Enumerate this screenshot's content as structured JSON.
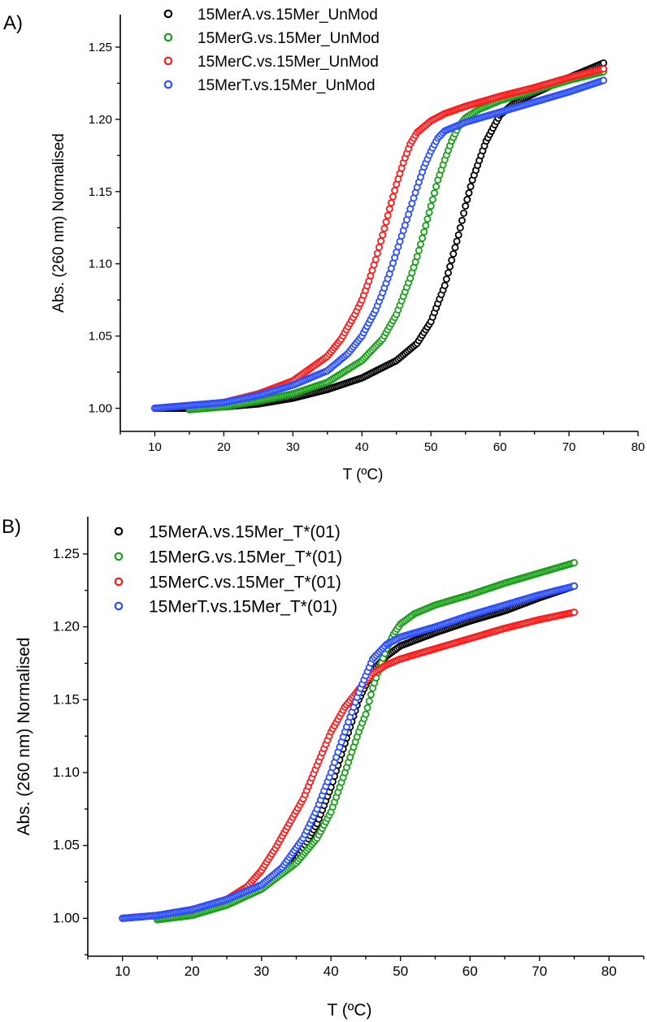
{
  "chart_data": [
    {
      "panel_label": "A)",
      "type": "scatter",
      "xlabel": "T (ºC)",
      "ylabel": "Abs. (260 nm) Normalised",
      "xlim": [
        5,
        80
      ],
      "ylim": [
        0.984,
        1.2725
      ],
      "xticks": [
        10,
        20,
        30,
        40,
        50,
        60,
        70,
        80
      ],
      "yticks": [
        "1.00",
        "1.05",
        "1.10",
        "1.15",
        "1.20",
        "1.25"
      ],
      "grid": false,
      "legend": "top-left",
      "series": [
        {
          "name": "15MerA.vs.15Mer_UnMod",
          "color": "#000000",
          "x": [
            10,
            15,
            20,
            25,
            30,
            35,
            40,
            45,
            48,
            50,
            52,
            54,
            55,
            56,
            58,
            60,
            62,
            65,
            70,
            75
          ],
          "y": [
            1.0,
            1.0,
            1.001,
            1.003,
            1.007,
            1.013,
            1.021,
            1.033,
            1.045,
            1.06,
            1.085,
            1.12,
            1.14,
            1.158,
            1.185,
            1.203,
            1.211,
            1.218,
            1.229,
            1.239
          ]
        },
        {
          "name": "15MerG.vs.15Mer_UnMod",
          "color": "#1a9e1a",
          "x": [
            15,
            20,
            25,
            30,
            35,
            40,
            43,
            45,
            47,
            48,
            49,
            50,
            51,
            52,
            53,
            54,
            55,
            57,
            60,
            65,
            70,
            75
          ],
          "y": [
            0.999,
            1.001,
            1.005,
            1.01,
            1.018,
            1.033,
            1.048,
            1.065,
            1.09,
            1.105,
            1.122,
            1.14,
            1.158,
            1.172,
            1.185,
            1.195,
            1.201,
            1.207,
            1.213,
            1.22,
            1.227,
            1.233
          ]
        },
        {
          "name": "15MerC.vs.15Mer_UnMod",
          "color": "#ff1a1a",
          "x": [
            10,
            15,
            20,
            25,
            30,
            35,
            37,
            39,
            40,
            41,
            42,
            43,
            44,
            45,
            46,
            47,
            48,
            50,
            52,
            55,
            60,
            65,
            70,
            75
          ],
          "y": [
            1.0,
            1.002,
            1.004,
            1.01,
            1.019,
            1.036,
            1.048,
            1.065,
            1.075,
            1.088,
            1.103,
            1.12,
            1.138,
            1.155,
            1.17,
            1.183,
            1.191,
            1.199,
            1.204,
            1.209,
            1.216,
            1.222,
            1.229,
            1.235
          ]
        },
        {
          "name": "15MerT.vs.15Mer_UnMod",
          "color": "#2a4dff",
          "x": [
            10,
            15,
            20,
            25,
            30,
            35,
            38,
            40,
            42,
            43,
            44,
            45,
            46,
            47,
            48,
            49,
            50,
            51,
            52,
            55,
            60,
            65,
            70,
            75
          ],
          "y": [
            1.0,
            1.002,
            1.004,
            1.009,
            1.016,
            1.026,
            1.038,
            1.05,
            1.068,
            1.08,
            1.093,
            1.108,
            1.123,
            1.138,
            1.153,
            1.167,
            1.178,
            1.187,
            1.192,
            1.198,
            1.205,
            1.212,
            1.219,
            1.227
          ]
        }
      ]
    },
    {
      "panel_label": "B)",
      "type": "scatter",
      "xlabel": "T (ºC)",
      "ylabel": "Abs. (260 nm) Normalised",
      "xlim": [
        5,
        85
      ],
      "ylim": [
        0.974,
        1.2756
      ],
      "xticks": [
        10,
        20,
        30,
        40,
        50,
        60,
        70,
        80
      ],
      "yticks": [
        "1.00",
        "1.05",
        "1.10",
        "1.15",
        "1.20",
        "1.25"
      ],
      "grid": false,
      "legend": "top-left",
      "series": [
        {
          "name": "15MerA.vs.15Mer_T*(01)",
          "color": "#000000",
          "x": [
            10,
            15,
            20,
            25,
            30,
            35,
            38,
            40,
            42,
            44,
            46,
            48,
            50,
            55,
            60,
            65,
            70,
            75
          ],
          "y": [
            1.0,
            1.002,
            1.006,
            1.012,
            1.022,
            1.04,
            1.065,
            1.09,
            1.12,
            1.15,
            1.17,
            1.18,
            1.187,
            1.196,
            1.204,
            1.211,
            1.22,
            1.228
          ]
        },
        {
          "name": "15MerG.vs.15Mer_T*(01)",
          "color": "#1a9e1a",
          "x": [
            15,
            20,
            25,
            30,
            35,
            38,
            40,
            42,
            44,
            45,
            46,
            47,
            48,
            49,
            50,
            52,
            55,
            60,
            65,
            70,
            75
          ],
          "y": [
            0.999,
            1.002,
            1.009,
            1.02,
            1.038,
            1.055,
            1.073,
            1.1,
            1.128,
            1.14,
            1.158,
            1.172,
            1.185,
            1.195,
            1.202,
            1.209,
            1.215,
            1.222,
            1.23,
            1.237,
            1.244
          ]
        },
        {
          "name": "15MerC.vs.15Mer_T*(01)",
          "color": "#ff1a1a",
          "x": [
            10,
            15,
            20,
            25,
            28,
            30,
            32,
            34,
            36,
            38,
            40,
            42,
            44,
            46,
            48,
            50,
            55,
            60,
            65,
            70,
            75
          ],
          "y": [
            1.0,
            1.002,
            1.006,
            1.013,
            1.022,
            1.033,
            1.048,
            1.065,
            1.082,
            1.105,
            1.128,
            1.145,
            1.157,
            1.168,
            1.174,
            1.178,
            1.185,
            1.192,
            1.199,
            1.205,
            1.21
          ]
        },
        {
          "name": "15MerT.vs.15Mer_T*(01)",
          "color": "#2a4dff",
          "x": [
            10,
            15,
            20,
            25,
            30,
            33,
            36,
            38,
            40,
            42,
            44,
            46,
            48,
            50,
            55,
            60,
            65,
            70,
            75
          ],
          "y": [
            1.0,
            1.002,
            1.006,
            1.013,
            1.023,
            1.035,
            1.055,
            1.075,
            1.1,
            1.128,
            1.155,
            1.178,
            1.188,
            1.193,
            1.2,
            1.208,
            1.215,
            1.222,
            1.228
          ]
        }
      ]
    }
  ]
}
